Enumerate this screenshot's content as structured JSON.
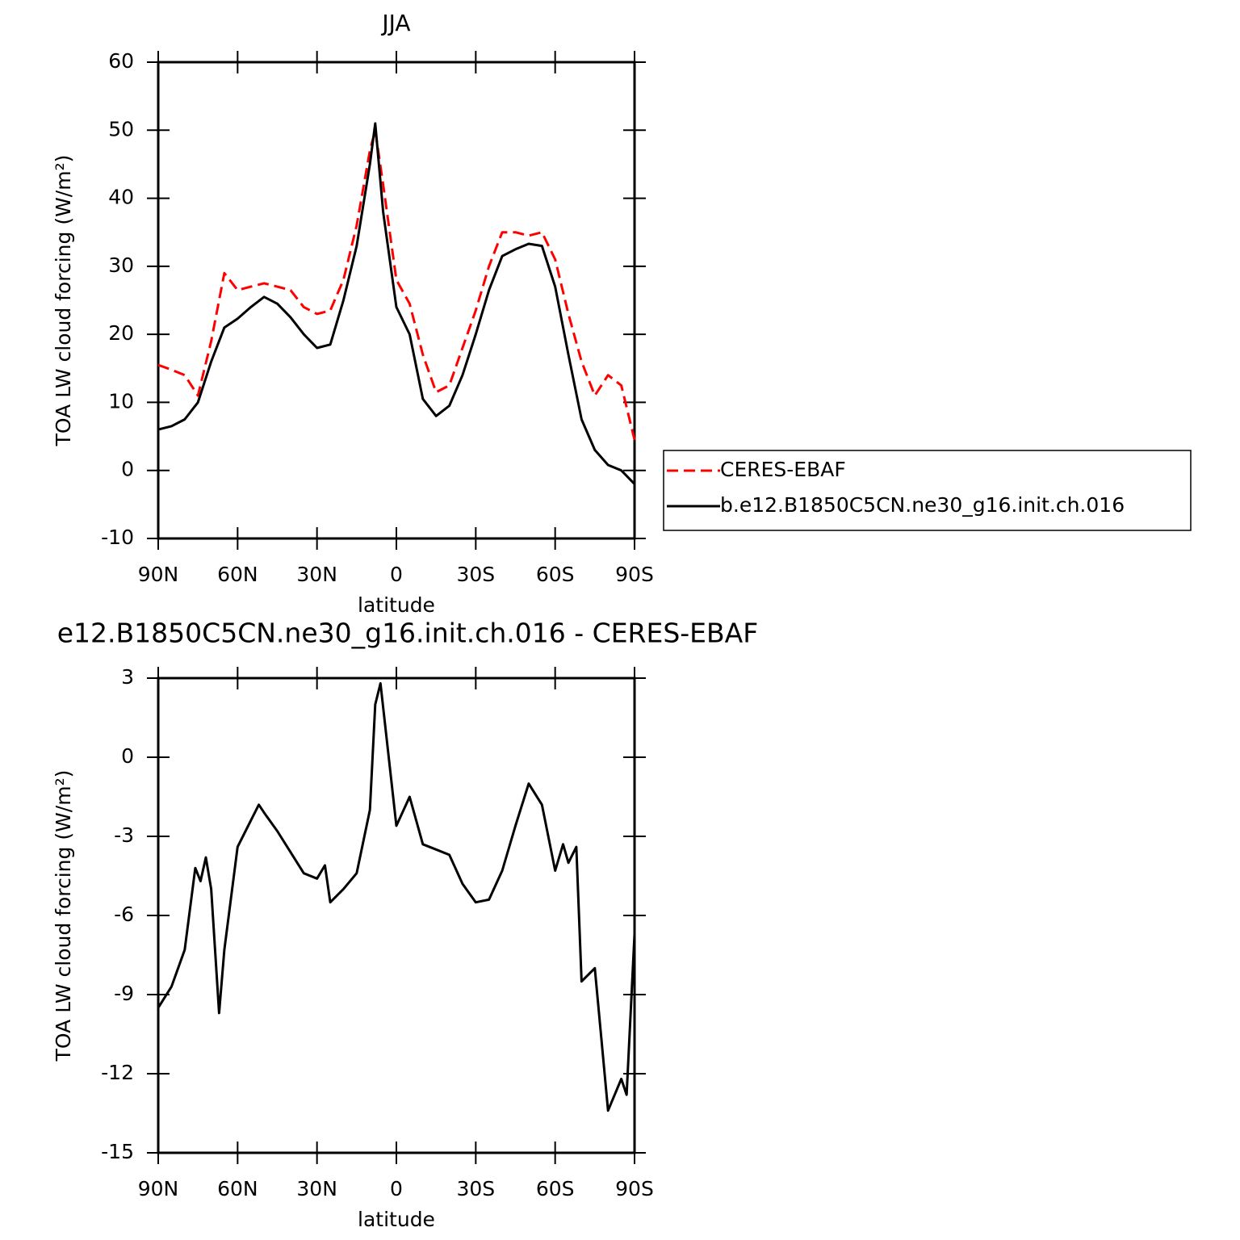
{
  "chart_data": [
    {
      "type": "line",
      "title": "JJA",
      "xlabel": "latitude",
      "ylabel": "TOA LW cloud forcing (W/m²)",
      "x": [
        90,
        85,
        80,
        75,
        70,
        65,
        60,
        55,
        50,
        45,
        40,
        35,
        30,
        25,
        20,
        15,
        10,
        8,
        5,
        0,
        -5,
        -10,
        -15,
        -20,
        -25,
        -30,
        -35,
        -40,
        -45,
        -50,
        -55,
        -60,
        -65,
        -70,
        -75,
        -80,
        -85,
        -90
      ],
      "series": [
        {
          "name": "CERES-EBAF",
          "color": "#ff0000",
          "line_style": "dashed",
          "values": [
            15.5,
            14.8,
            14,
            11,
            19,
            29,
            26.5,
            27,
            27.5,
            27,
            26.5,
            24,
            23,
            23.5,
            28,
            36,
            47,
            50,
            42,
            28,
            24.5,
            17,
            11.5,
            12.5,
            18,
            23.5,
            30,
            35,
            35,
            34.5,
            35,
            31,
            23,
            16,
            11,
            14,
            12.5,
            4.5
          ]
        },
        {
          "name": "b.e12.B1850C5CN.ne30_g16.init.ch.016",
          "color": "#000000",
          "line_style": "solid",
          "values": [
            6,
            6.5,
            7.5,
            10,
            16,
            21,
            22.3,
            24,
            25.5,
            24.5,
            22.5,
            20,
            18,
            18.5,
            25,
            33,
            45,
            51,
            38,
            24,
            20,
            10.5,
            8,
            9.5,
            14,
            20,
            26.5,
            31.5,
            32.5,
            33.3,
            33,
            27,
            17,
            7.5,
            3,
            0.8,
            0,
            -2
          ]
        }
      ],
      "xlim": [
        90,
        -90
      ],
      "xticks": [
        {
          "value": 90,
          "label": "90N"
        },
        {
          "value": 60,
          "label": "60N"
        },
        {
          "value": 30,
          "label": "30N"
        },
        0,
        {
          "value": -30,
          "label": "30S"
        },
        {
          "value": -60,
          "label": "60S"
        },
        {
          "value": -90,
          "label": "90S"
        }
      ],
      "ylim": [
        -10,
        60
      ],
      "yticks": [
        -10,
        0,
        10,
        20,
        30,
        40,
        50,
        60
      ],
      "legend": "right"
    },
    {
      "type": "line",
      "title": "e12.B1850C5CN.ne30_g16.init.ch.016 - CERES-EBAF",
      "xlabel": "latitude",
      "ylabel": "TOA LW cloud forcing (W/m²)",
      "x": [
        90,
        85,
        80,
        76,
        74,
        72,
        70,
        67,
        65,
        60,
        55,
        52,
        50,
        45,
        40,
        35,
        30,
        27,
        25,
        20,
        15,
        10,
        8,
        6,
        0,
        -5,
        -10,
        -15,
        -20,
        -25,
        -30,
        -35,
        -40,
        -45,
        -50,
        -55,
        -60,
        -63,
        -65,
        -68,
        -70,
        -75,
        -80,
        -85,
        -87,
        -90
      ],
      "series": [
        {
          "color": "#000000",
          "line_style": "solid",
          "values": [
            -9.5,
            -8.7,
            -7.3,
            -4.2,
            -4.7,
            -3.8,
            -5,
            -9.7,
            -7.3,
            -3.4,
            -2.4,
            -1.8,
            -2.1,
            -2.8,
            -3.6,
            -4.4,
            -4.6,
            -4.1,
            -5.5,
            -5,
            -4.4,
            -2,
            2,
            2.8,
            -2.6,
            -1.5,
            -3.3,
            -3.5,
            -3.7,
            -4.8,
            -5.5,
            -5.4,
            -4.3,
            -2.6,
            -1,
            -1.8,
            -4.3,
            -3.3,
            -4,
            -3.4,
            -8.5,
            -8,
            -13.4,
            -12.2,
            -12.8,
            -6.7
          ]
        }
      ],
      "xlim": [
        90,
        -90
      ],
      "xticks": [
        {
          "value": 90,
          "label": "90N"
        },
        {
          "value": 60,
          "label": "60N"
        },
        {
          "value": 30,
          "label": "30N"
        },
        0,
        {
          "value": -30,
          "label": "30S"
        },
        {
          "value": -60,
          "label": "60S"
        },
        {
          "value": -90,
          "label": "90S"
        }
      ],
      "ylim": [
        -15,
        3
      ],
      "yticks": [
        -15,
        -12,
        -9,
        -6,
        -3,
        0,
        3
      ]
    }
  ]
}
